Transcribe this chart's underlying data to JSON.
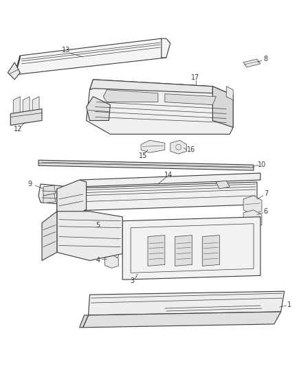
{
  "bg_color": "#ffffff",
  "line_color": "#3a3a3a",
  "figsize": [
    4.38,
    5.33
  ],
  "dpi": 100,
  "lw_main": 0.8,
  "lw_thin": 0.5,
  "lw_detail": 0.35,
  "label_fontsize": 7.0
}
